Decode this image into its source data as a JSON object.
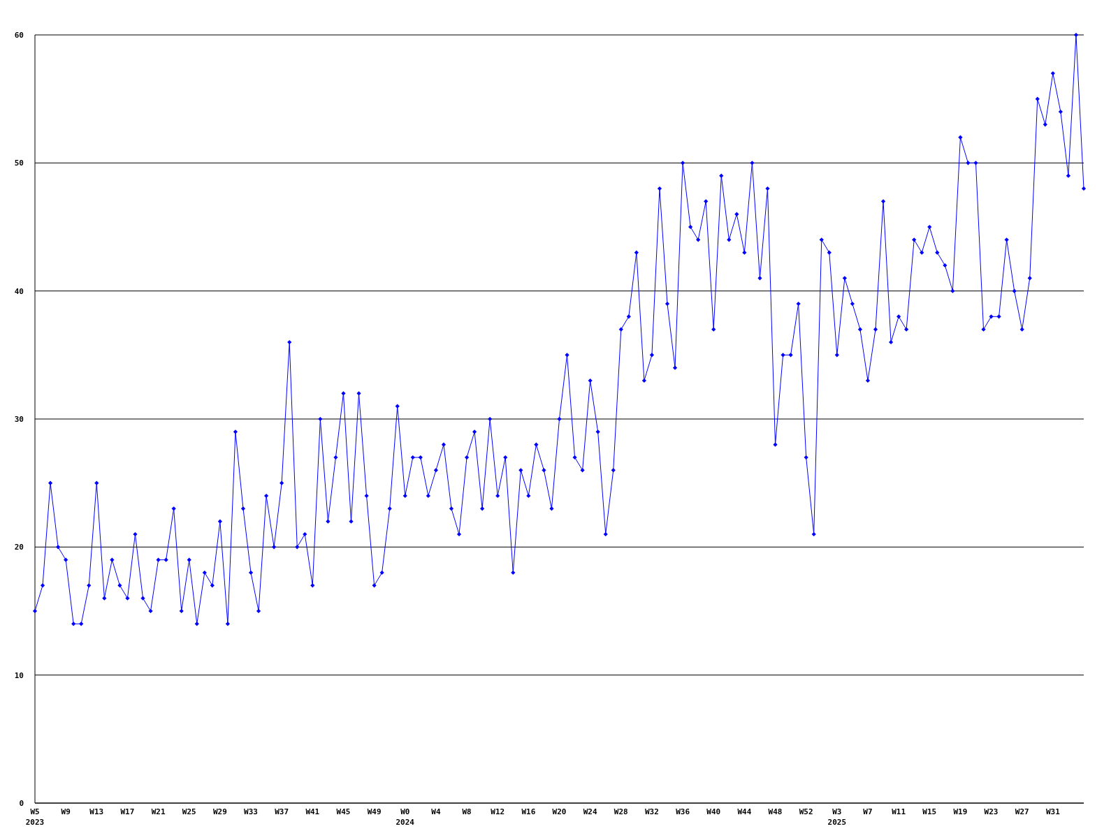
{
  "chart_data": {
    "type": "line",
    "categories": [
      "W5\n2023",
      null,
      null,
      null,
      "W9",
      null,
      null,
      null,
      "W13",
      null,
      null,
      null,
      "W17",
      null,
      null,
      null,
      "W21",
      null,
      null,
      null,
      "W25",
      null,
      null,
      null,
      "W29",
      null,
      null,
      null,
      "W33",
      null,
      null,
      null,
      "W37",
      null,
      null,
      null,
      "W41",
      null,
      null,
      null,
      "W45",
      null,
      null,
      null,
      "W49",
      null,
      null,
      null,
      "W0\n2024",
      null,
      null,
      null,
      "W4",
      null,
      null,
      null,
      "W8",
      null,
      null,
      null,
      "W12",
      null,
      null,
      null,
      "W16",
      null,
      null,
      null,
      "W20",
      null,
      null,
      null,
      "W24",
      null,
      null,
      null,
      "W28",
      null,
      null,
      null,
      "W32",
      null,
      null,
      null,
      "W36",
      null,
      null,
      null,
      "W40",
      null,
      null,
      null,
      "W44",
      null,
      null,
      null,
      "W48",
      null,
      null,
      null,
      "W52",
      null,
      null,
      null,
      "W3\n2025",
      null,
      null,
      null,
      "W7",
      null,
      null,
      null,
      "W11",
      null,
      null,
      null,
      "W15",
      null,
      null,
      null,
      "W19",
      null,
      null,
      null,
      "W23",
      null,
      null,
      null,
      "W27",
      null,
      null,
      null,
      "W31",
      null,
      null,
      null,
      null
    ],
    "series": [
      {
        "color": "#0000ff",
        "values": [
          15,
          17,
          25,
          20,
          19,
          14,
          14,
          17,
          25,
          16,
          19,
          17,
          16,
          21,
          16,
          15,
          19,
          19,
          23,
          15,
          19,
          14,
          18,
          17,
          22,
          14,
          29,
          23,
          18,
          15,
          24,
          20,
          25,
          36,
          20,
          21,
          17,
          30,
          22,
          27,
          32,
          22,
          32,
          24,
          17,
          18,
          23,
          31,
          24,
          27,
          27,
          24,
          26,
          28,
          23,
          21,
          27,
          29,
          23,
          30,
          24,
          27,
          18,
          26,
          24,
          28,
          26,
          23,
          30,
          35,
          27,
          26,
          33,
          29,
          21,
          26,
          37,
          38,
          43,
          33,
          35,
          48,
          39,
          34,
          50,
          45,
          44,
          47,
          37,
          49,
          44,
          46,
          43,
          50,
          41,
          48,
          28,
          35,
          35,
          39,
          27,
          21,
          44,
          43,
          35,
          41,
          39,
          37,
          33,
          37,
          47,
          36,
          38,
          37,
          44,
          43,
          45,
          43,
          42,
          40,
          52,
          50,
          50,
          37,
          38,
          38,
          44,
          40,
          37,
          41,
          55,
          53,
          57,
          54,
          49,
          60,
          48
        ]
      }
    ],
    "ylim": [
      0,
      60
    ],
    "yticks": [
      0,
      10,
      20,
      30,
      40,
      50,
      60
    ],
    "grid": "y",
    "marker": "diamond",
    "line_style": "solid"
  }
}
